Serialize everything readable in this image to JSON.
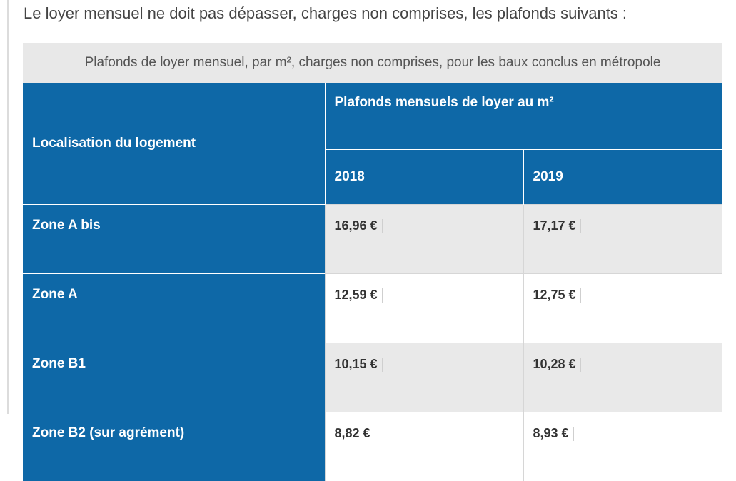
{
  "intro_text": "Le loyer mensuel ne doit pas dépasser, charges non comprises, les plafonds suivants :",
  "table": {
    "caption": "Plafonds de loyer mensuel, par m², charges non comprises, pour les baux conclus en métropole",
    "col_location": "Localisation du logement",
    "col_group": "Plafonds mensuels de loyer au m²",
    "years": [
      "2018",
      "2019"
    ],
    "rows": [
      {
        "zone": "Zone A bis",
        "v2018": "16,96 €",
        "v2019": "17,17 €"
      },
      {
        "zone": "Zone A",
        "v2018": "12,59 €",
        "v2019": "12,75 €"
      },
      {
        "zone": "Zone B1",
        "v2018": "10,15 €",
        "v2019": "10,28 €"
      },
      {
        "zone": "Zone B2 (sur agrément)",
        "v2018": "8,82 €",
        "v2019": "8,93 €"
      }
    ]
  },
  "colors": {
    "header_blue": "#0e68a7",
    "caption_gray": "#e8e8e8",
    "row_alt_gray": "#e9e9e9"
  }
}
